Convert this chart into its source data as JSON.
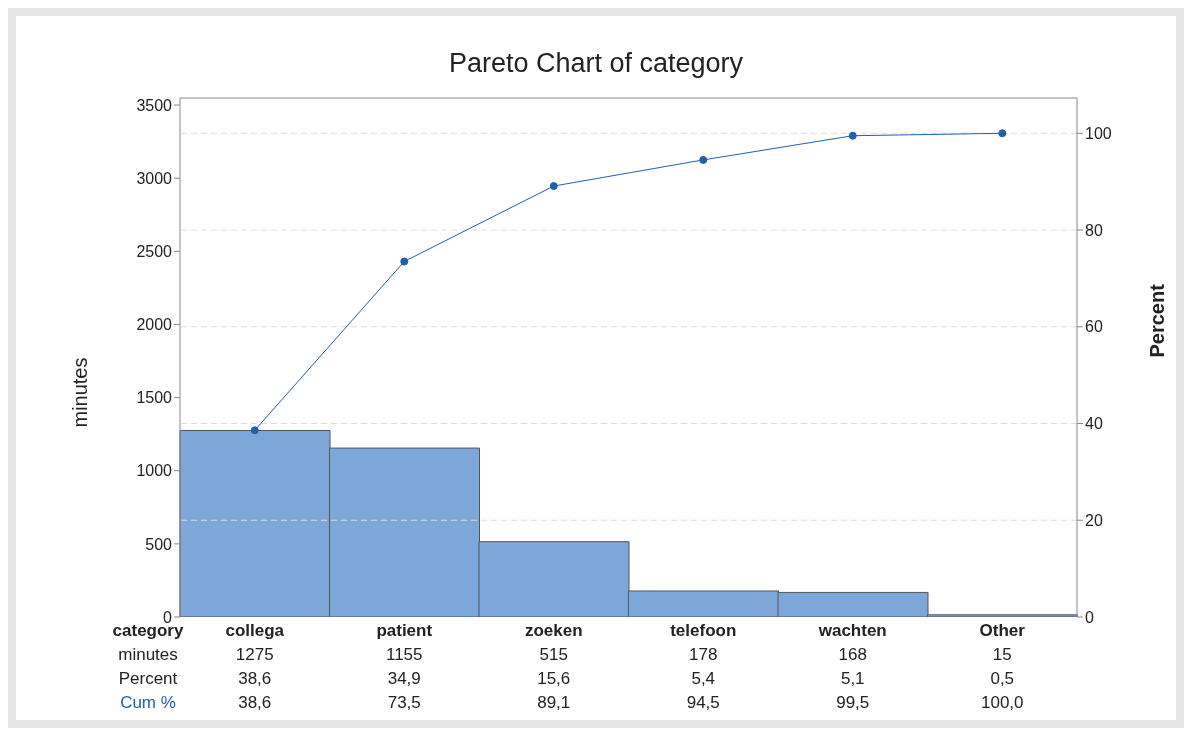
{
  "chart_data": {
    "type": "bar",
    "title": "Pareto Chart of category",
    "xlabel": "category",
    "ylabel": "minutes",
    "y2label": "Percent",
    "categories": [
      "collega",
      "patient",
      "zoeken",
      "telefoon",
      "wachten",
      "Other"
    ],
    "series": [
      {
        "name": "minutes",
        "color": "#7da7d9",
        "values": [
          1275,
          1155,
          515,
          178,
          168,
          15
        ],
        "value_labels": [
          "1275",
          "1155",
          "515",
          "178",
          "168",
          "15"
        ]
      },
      {
        "name": "Cum %",
        "type": "line",
        "axis": "y2",
        "color": "#1f5fb0",
        "values": [
          38.6,
          73.5,
          89.1,
          94.5,
          99.5,
          100.0
        ],
        "value_labels": [
          "38,6",
          "73,5",
          "89,1",
          "94,5",
          "99,5",
          "100,0"
        ]
      }
    ],
    "ylim": [
      0,
      3548
    ],
    "yticks": [
      0,
      500,
      1000,
      1500,
      2000,
      2500,
      3000,
      3500
    ],
    "y2lim": [
      0,
      107.3
    ],
    "y2ticks": [
      0,
      20,
      40,
      60,
      80,
      100
    ],
    "annotations": [
      "Percent",
      "38,6",
      "34,9",
      "15,6",
      "5,4",
      "5,1",
      "0,5"
    ],
    "grid": "y",
    "legend": false,
    "marker": "circle",
    "line_style": "solid"
  }
}
